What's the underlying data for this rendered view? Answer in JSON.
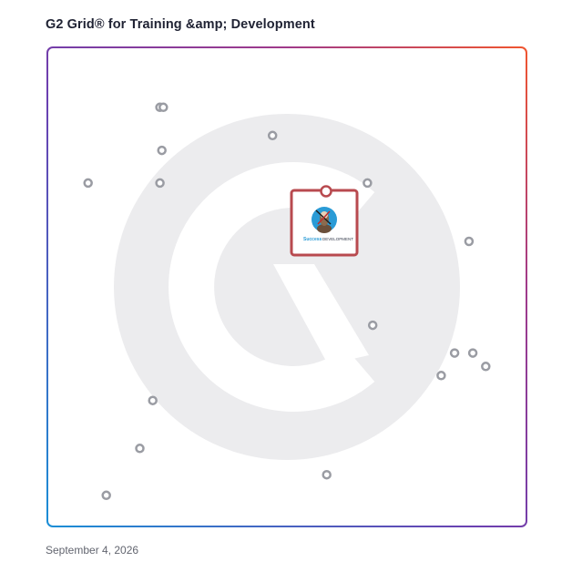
{
  "title": "G2 Grid® for Training &amp; Development",
  "date": "September 4, 2026",
  "featured_product": {
    "logo_text_primary": "Success",
    "logo_text_secondary": "DEVELOPMENT",
    "marker_color": "#b84a4f"
  },
  "colors": {
    "border_gradient": [
      "#1a8ed6",
      "#6b3fb0",
      "#a03a8a",
      "#f0552f"
    ],
    "watermark": "#ececee",
    "point": "#9a9ca3"
  },
  "icons": [
    "g2-watermark",
    "success-development-logo"
  ],
  "chart_data": {
    "type": "scatter",
    "title": "",
    "xlabel": "",
    "ylabel": "",
    "xlim": [
      0,
      100
    ],
    "ylim": [
      0,
      100
    ],
    "grid": "quadrants",
    "series": [
      {
        "points": [
          {
            "x": 23.5,
            "y": 87.5
          },
          {
            "x": 24.2,
            "y": 87.5
          },
          {
            "x": 23.9,
            "y": 78.5
          },
          {
            "x": 47.0,
            "y": 81.6
          },
          {
            "x": 8.5,
            "y": 71.7
          },
          {
            "x": 23.5,
            "y": 71.7
          },
          {
            "x": 66.8,
            "y": 71.7
          },
          {
            "x": 88.0,
            "y": 59.5
          },
          {
            "x": 67.9,
            "y": 42.0
          },
          {
            "x": 85.0,
            "y": 36.2
          },
          {
            "x": 88.8,
            "y": 36.2
          },
          {
            "x": 91.5,
            "y": 33.4
          },
          {
            "x": 82.2,
            "y": 31.5
          },
          {
            "x": 22.0,
            "y": 26.3
          },
          {
            "x": 19.3,
            "y": 16.3
          },
          {
            "x": 58.3,
            "y": 10.8
          },
          {
            "x": 12.3,
            "y": 6.5
          }
        ]
      }
    ],
    "highlighted_point": {
      "x": 58.3,
      "y": 70.0
    }
  }
}
